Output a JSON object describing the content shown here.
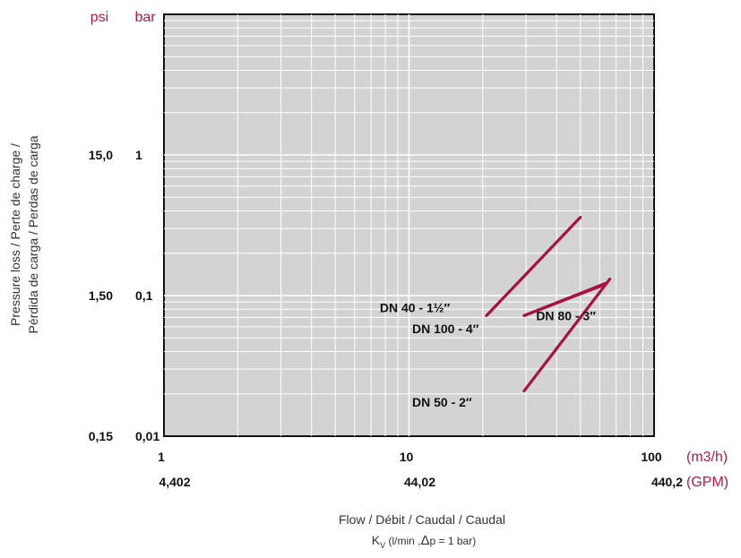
{
  "chart_data": {
    "type": "line",
    "xscale": "log",
    "yscale": "log",
    "xlim": [
      1,
      100
    ],
    "ylim": [
      0.01,
      10
    ],
    "grid": true,
    "x_units": [
      "(m3/h)",
      "(GPM)"
    ],
    "y_units": [
      "psi",
      "bar"
    ],
    "x_ticks": [
      {
        "value": 1,
        "label": "1",
        "gpm": "4,402"
      },
      {
        "value": 10,
        "label": "10",
        "gpm": "44,02"
      },
      {
        "value": 100,
        "label": "100",
        "gpm": "440,2"
      }
    ],
    "y_ticks": [
      {
        "value": 1,
        "bar": "1",
        "psi": "15,0"
      },
      {
        "value": 0.1,
        "bar": "0,1",
        "psi": "1,50"
      },
      {
        "value": 0.01,
        "bar": "0,01",
        "psi": "0,15"
      }
    ],
    "ylabel_line1": "Pressure loss / Perte de charge /",
    "ylabel_line2": "Pérdida de carga / Perdas de carga",
    "xlabel_line1": "Flow / Débit / Caudal / Caudal",
    "xlabel_kv": "K",
    "xlabel_kv_sub": "V",
    "xlabel_kv_rest": " (l/min ,",
    "xlabel_delta": "Δ",
    "xlabel_kv_end": "p = 1 bar)",
    "series": [
      {
        "name": "DN 40 - 1½″",
        "x": [
          20.7,
          50
        ],
        "y": [
          0.072,
          0.36
        ],
        "label_at": [
          7.6,
          0.082
        ]
      },
      {
        "name": "DN 50 - 2″",
        "x": [
          29.5,
          66
        ],
        "y": [
          0.021,
          0.131
        ],
        "label_at": [
          10.3,
          0.0175
        ]
      },
      {
        "name": "DN 80 - 3″",
        "x": [
          29.5,
          61.5
        ],
        "y": [
          0.072,
          0.118
        ],
        "label_at": [
          33,
          0.072
        ]
      },
      {
        "name": "DN 100 - 4″",
        "x": [
          29.5,
          64
        ],
        "y": [
          0.072,
          0.123
        ],
        "label_at": [
          10.3,
          0.058
        ]
      }
    ]
  }
}
